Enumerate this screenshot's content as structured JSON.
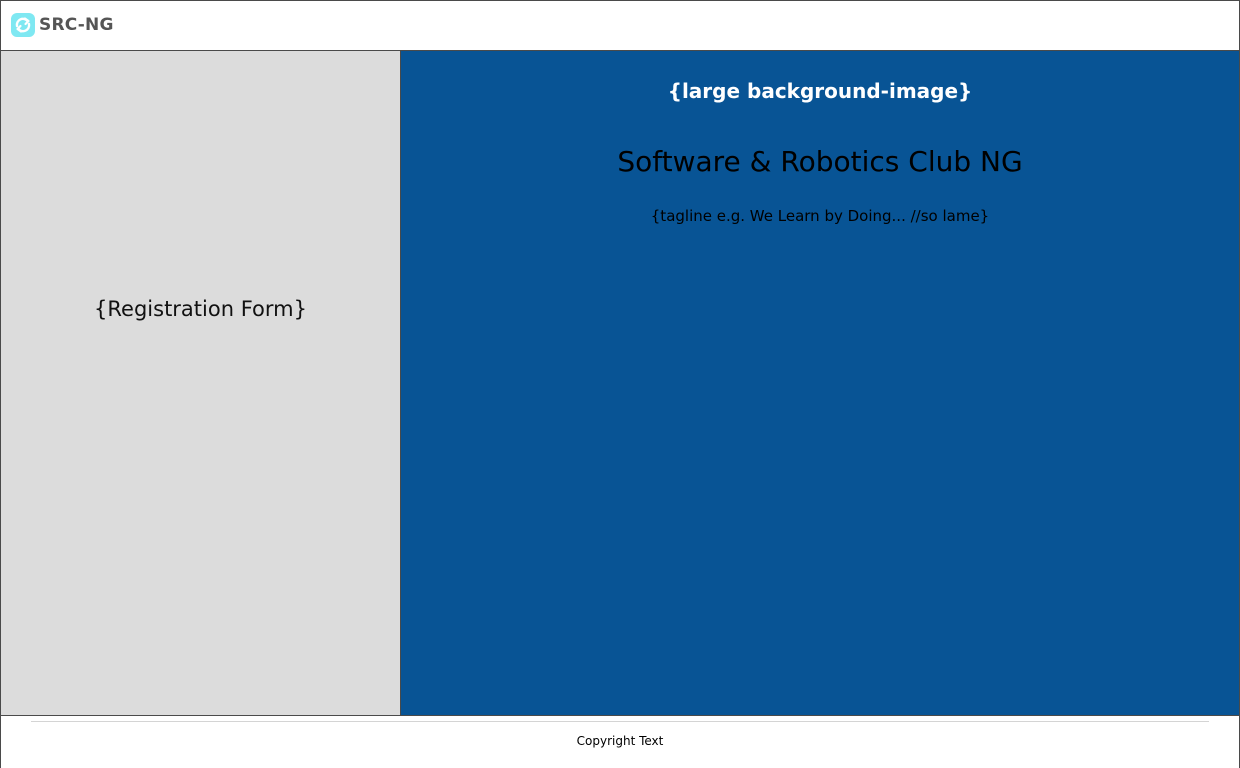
{
  "header": {
    "logo_icon": "refresh-arrows-icon",
    "logo_text": "SRC-NG"
  },
  "left_panel": {
    "placeholder": "{Registration Form}"
  },
  "hero": {
    "background_label": "{large background-image}",
    "title": "Software & Robotics Club NG",
    "tagline": "{tagline e.g. We Learn by Doing... //so lame}"
  },
  "footer": {
    "copyright": "Copyright Text"
  },
  "colors": {
    "hero_background": "#085495",
    "left_panel_background": "#dcdcdc",
    "logo_icon": "#7fe8f2"
  }
}
